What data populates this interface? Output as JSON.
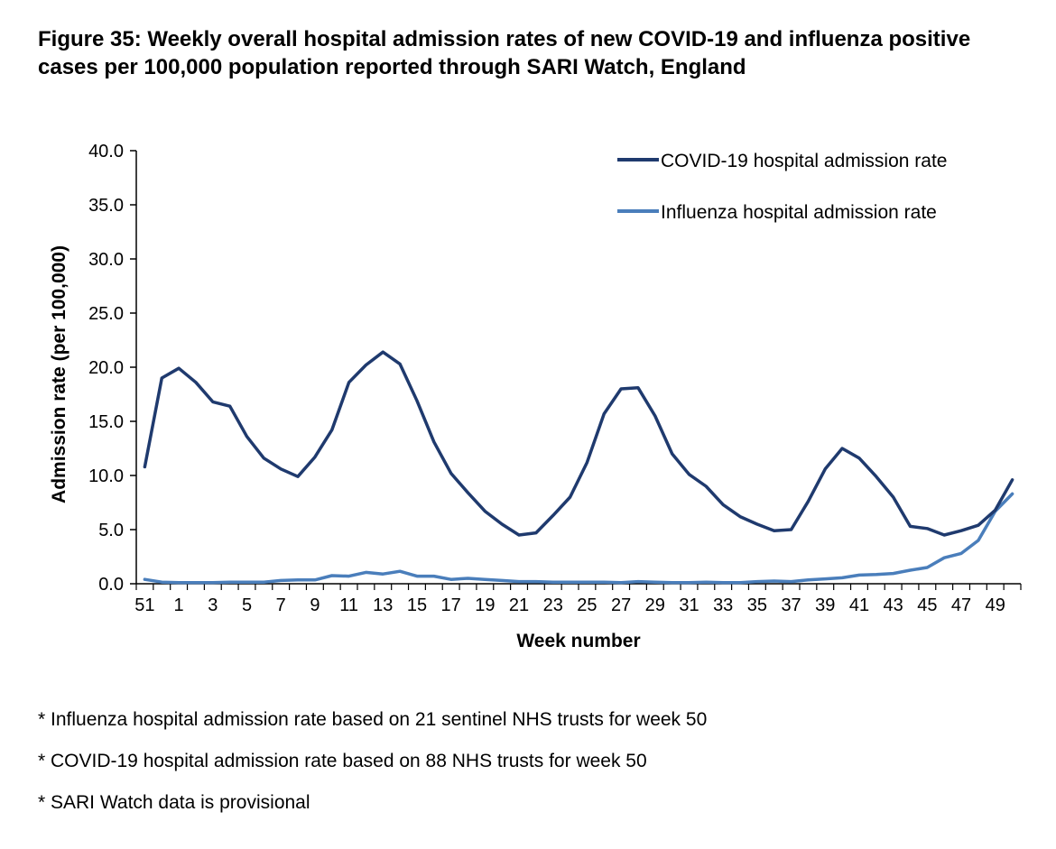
{
  "title": "Figure 35: Weekly overall hospital admission rates of new COVID-19 and influenza positive cases per 100,000 population reported through SARI Watch, England",
  "notes": [
    "* Influenza hospital admission rate based on 21 sentinel NHS trusts for week 50",
    "* COVID-19 hospital admission rate based on 88 NHS trusts for week 50",
    "* SARI Watch data is provisional"
  ],
  "chart_data": {
    "type": "line",
    "xlabel": "Week number",
    "ylabel": "Admission rate (per 100,000)",
    "ylim": [
      0,
      40
    ],
    "yticks": [
      "0.0",
      "5.0",
      "10.0",
      "15.0",
      "20.0",
      "25.0",
      "30.0",
      "35.0",
      "40.0"
    ],
    "categories": [
      "51",
      "52",
      "1",
      "2",
      "3",
      "4",
      "5",
      "6",
      "7",
      "8",
      "9",
      "10",
      "11",
      "12",
      "13",
      "14",
      "15",
      "16",
      "17",
      "18",
      "19",
      "20",
      "21",
      "22",
      "23",
      "24",
      "25",
      "26",
      "27",
      "28",
      "29",
      "30",
      "31",
      "32",
      "33",
      "34",
      "35",
      "36",
      "37",
      "38",
      "39",
      "40",
      "41",
      "42",
      "43",
      "44",
      "45",
      "46",
      "47",
      "48",
      "49",
      "50"
    ],
    "tick_labels": [
      "51",
      "1",
      "3",
      "5",
      "7",
      "9",
      "11",
      "13",
      "15",
      "17",
      "19",
      "21",
      "23",
      "25",
      "27",
      "29",
      "31",
      "33",
      "35",
      "37",
      "39",
      "41",
      "43",
      "45",
      "47",
      "49"
    ],
    "legend_position": "top-right",
    "series": [
      {
        "name": "COVID-19 hospital admission rate",
        "color": "#1f3a6e",
        "values": [
          10.8,
          19.0,
          19.9,
          18.6,
          16.8,
          16.4,
          13.6,
          11.6,
          10.6,
          9.9,
          11.7,
          14.2,
          18.6,
          20.2,
          21.4,
          20.3,
          16.9,
          13.1,
          10.2,
          8.4,
          6.7,
          5.5,
          4.5,
          4.7,
          6.3,
          8.0,
          11.2,
          15.7,
          18.0,
          18.1,
          15.5,
          12.0,
          10.1,
          9.0,
          7.3,
          6.2,
          5.5,
          4.9,
          5.0,
          7.6,
          10.6,
          12.5,
          11.6,
          9.9,
          8.0,
          5.3,
          5.1,
          4.5,
          4.9,
          5.4,
          6.8,
          9.6
        ]
      },
      {
        "name": "Influenza hospital admission rate",
        "color": "#4a7ebb",
        "values": [
          0.4,
          0.15,
          0.1,
          0.1,
          0.1,
          0.15,
          0.15,
          0.15,
          0.3,
          0.35,
          0.35,
          0.75,
          0.7,
          1.05,
          0.9,
          1.15,
          0.7,
          0.7,
          0.4,
          0.5,
          0.4,
          0.3,
          0.2,
          0.2,
          0.15,
          0.15,
          0.15,
          0.15,
          0.1,
          0.2,
          0.15,
          0.1,
          0.1,
          0.15,
          0.1,
          0.1,
          0.2,
          0.25,
          0.2,
          0.35,
          0.45,
          0.55,
          0.8,
          0.85,
          0.95,
          1.25,
          1.5,
          2.4,
          2.8,
          4.0,
          6.7,
          8.3
        ]
      }
    ]
  }
}
